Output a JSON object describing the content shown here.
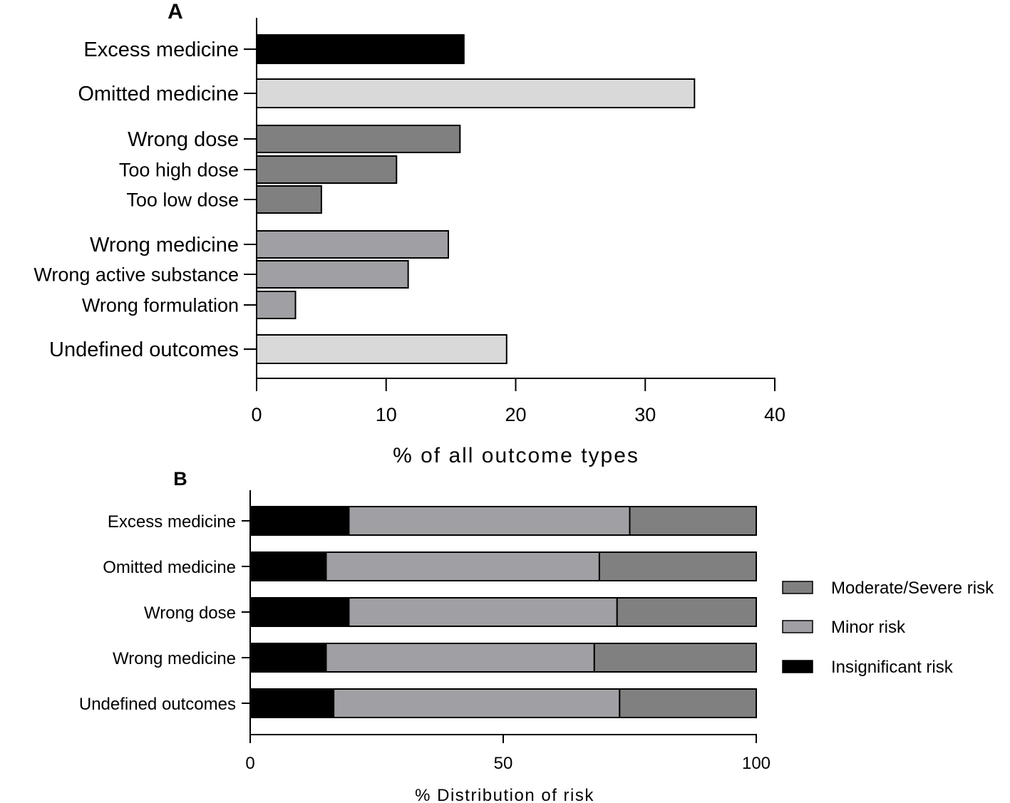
{
  "chart_data": [
    {
      "panel": "A",
      "type": "bar",
      "orientation": "horizontal",
      "categories": [
        "Excess medicine",
        "Omitted medicine",
        "Wrong dose",
        "Too high dose",
        "Too low dose",
        "Wrong medicine",
        "Wrong active substance",
        "Wrong formulation",
        "Undefined outcomes"
      ],
      "values": [
        16,
        33.8,
        15.7,
        10.8,
        5,
        14.8,
        11.7,
        3,
        19.3
      ],
      "colors": [
        "#000000",
        "#d9d9d9",
        "#808080",
        "#808080",
        "#808080",
        "#a0a0a4",
        "#a0a0a4",
        "#a0a0a4",
        "#d9d9d9"
      ],
      "xlabel": "% of all outcome types",
      "ylabel": "",
      "xlim": [
        0,
        40
      ],
      "xticks": [
        0,
        10,
        20,
        30,
        40
      ],
      "grid": false
    },
    {
      "panel": "B",
      "type": "bar",
      "orientation": "horizontal",
      "stacked": true,
      "categories": [
        "Excess medicine",
        "Omitted medicine",
        "Wrong dose",
        "Wrong medicine",
        "Undefined outcomes"
      ],
      "series": [
        {
          "name": "Insignificant risk",
          "color": "#000000",
          "values": [
            19.5,
            15,
            19.5,
            15,
            16.5
          ]
        },
        {
          "name": "Minor risk",
          "color": "#a0a0a4",
          "values": [
            55.5,
            54,
            53,
            53,
            56.5
          ]
        },
        {
          "name": "Moderate/Severe risk",
          "color": "#808080",
          "values": [
            25,
            31,
            27.5,
            32,
            27
          ]
        }
      ],
      "legend_order": [
        "Moderate/Severe risk",
        "Minor risk",
        "Insignificant risk"
      ],
      "legend_position": "right",
      "xlabel": "% Distribution of risk",
      "ylabel": "",
      "xlim": [
        0,
        100
      ],
      "xticks": [
        0,
        50,
        100
      ],
      "grid": false
    }
  ]
}
